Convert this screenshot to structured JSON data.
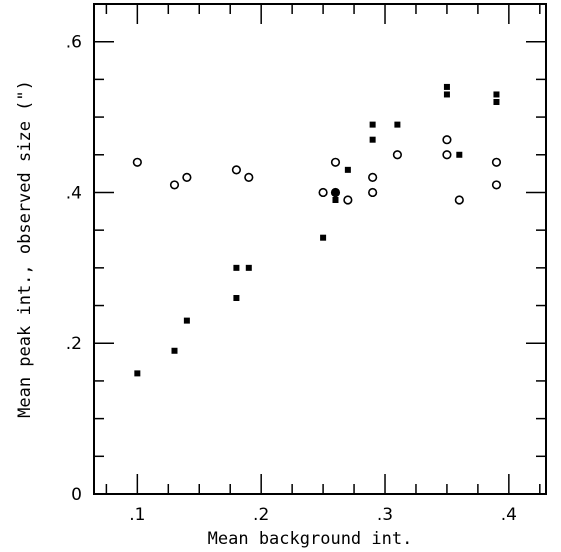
{
  "chart_data": {
    "type": "scatter",
    "title": "",
    "xlabel": "Mean background int.",
    "ylabel": "Mean peak int., observed size (\")",
    "xlim": [
      0.065,
      0.43
    ],
    "ylim": [
      0,
      0.65
    ],
    "x_ticks": [
      {
        "value": 0.1,
        "label": ".1"
      },
      {
        "value": 0.2,
        "label": ".2"
      },
      {
        "value": 0.3,
        "label": ".3"
      },
      {
        "value": 0.4,
        "label": ".4"
      }
    ],
    "y_ticks": [
      {
        "value": 0,
        "label": "0"
      },
      {
        "value": 0.2,
        "label": ".2"
      },
      {
        "value": 0.4,
        "label": ".4"
      },
      {
        "value": 0.6,
        "label": ".6"
      }
    ],
    "grid": false,
    "series": [
      {
        "marker": "filled-square",
        "color": "#000000",
        "points": [
          [
            0.1,
            0.16
          ],
          [
            0.13,
            0.19
          ],
          [
            0.14,
            0.23
          ],
          [
            0.18,
            0.3
          ],
          [
            0.18,
            0.26
          ],
          [
            0.19,
            0.3
          ],
          [
            0.25,
            0.34
          ],
          [
            0.26,
            0.4
          ],
          [
            0.26,
            0.39
          ],
          [
            0.27,
            0.43
          ],
          [
            0.29,
            0.49
          ],
          [
            0.29,
            0.47
          ],
          [
            0.31,
            0.49
          ],
          [
            0.35,
            0.54
          ],
          [
            0.35,
            0.53
          ],
          [
            0.36,
            0.45
          ],
          [
            0.39,
            0.53
          ],
          [
            0.39,
            0.52
          ]
        ]
      },
      {
        "marker": "open-circle",
        "color": "#000000",
        "points": [
          [
            0.1,
            0.44
          ],
          [
            0.13,
            0.41
          ],
          [
            0.14,
            0.42
          ],
          [
            0.18,
            0.43
          ],
          [
            0.19,
            0.42
          ],
          [
            0.25,
            0.4
          ],
          [
            0.26,
            0.44
          ],
          [
            0.26,
            0.4
          ],
          [
            0.27,
            0.39
          ],
          [
            0.29,
            0.42
          ],
          [
            0.29,
            0.4
          ],
          [
            0.31,
            0.45
          ],
          [
            0.35,
            0.47
          ],
          [
            0.35,
            0.45
          ],
          [
            0.36,
            0.39
          ],
          [
            0.39,
            0.44
          ],
          [
            0.39,
            0.41
          ]
        ]
      }
    ]
  }
}
